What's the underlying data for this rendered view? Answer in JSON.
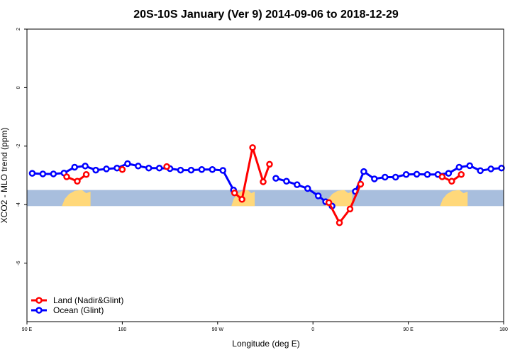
{
  "chart_data": {
    "type": "line",
    "title": "20S-10S January (Ver 9)   2014-09-06 to 2018-12-29",
    "xlabel": "Longitude (deg E)",
    "ylabel": "XCO2 - MLO trend (ppm)",
    "xlim": [
      90,
      540
    ],
    "ylim": [
      -8,
      2
    ],
    "x_ticks": [
      {
        "value": 90,
        "label": "90 E"
      },
      {
        "value": 180,
        "label": "180"
      },
      {
        "value": 270,
        "label": "90 W"
      },
      {
        "value": 360,
        "label": "0"
      },
      {
        "value": 450,
        "label": "90 E"
      },
      {
        "value": 540,
        "label": "180"
      }
    ],
    "y_ticks": [
      {
        "value": 2,
        "label": "2"
      },
      {
        "value": 0,
        "label": "0"
      },
      {
        "value": -2,
        "label": "-2"
      },
      {
        "value": -4,
        "label": "-4"
      },
      {
        "value": -6,
        "label": "-6"
      }
    ],
    "legend_position": "bottom-left",
    "land_band": {
      "y_top": -3.5,
      "y_bottom": -4.05,
      "ocean_color": "#a8bedd",
      "land_color": "#ffd87a"
    },
    "land_segments": [
      [
        123,
        150
      ],
      [
        283,
        305
      ],
      [
        372,
        397
      ],
      [
        480,
        506
      ]
    ],
    "series": [
      {
        "name": "Land (Nadir&Glint)",
        "color": "#ff0000",
        "points": [
          [
            127.5,
            -3.05
          ],
          [
            137.5,
            -3.2
          ],
          [
            146,
            -2.97
          ],
          [
            180,
            -2.8
          ],
          [
            222,
            -2.7
          ],
          [
            286,
            -3.6
          ],
          [
            293,
            -3.82
          ],
          [
            303,
            -2.05
          ],
          [
            313,
            -3.22
          ],
          [
            319,
            -2.62
          ],
          [
            375,
            -3.93
          ],
          [
            385,
            -4.62
          ],
          [
            395,
            -4.15
          ],
          [
            405,
            -3.3
          ],
          [
            482,
            -3.05
          ],
          [
            491,
            -3.2
          ],
          [
            500,
            -2.97
          ]
        ],
        "segments": [
          [
            0,
            2
          ],
          [
            3,
            3
          ],
          [
            4,
            4
          ],
          [
            5,
            9
          ],
          [
            10,
            13
          ],
          [
            14,
            16
          ]
        ]
      },
      {
        "name": "Ocean (Glint)",
        "color": "#0000ff",
        "points": [
          [
            95,
            -2.93
          ],
          [
            105,
            -2.95
          ],
          [
            115,
            -2.95
          ],
          [
            125,
            -2.92
          ],
          [
            135,
            -2.72
          ],
          [
            145,
            -2.68
          ],
          [
            155,
            -2.82
          ],
          [
            165,
            -2.78
          ],
          [
            175,
            -2.75
          ],
          [
            185,
            -2.6
          ],
          [
            195,
            -2.68
          ],
          [
            205,
            -2.75
          ],
          [
            215,
            -2.75
          ],
          [
            225,
            -2.77
          ],
          [
            235,
            -2.82
          ],
          [
            245,
            -2.82
          ],
          [
            255,
            -2.8
          ],
          [
            265,
            -2.8
          ],
          [
            275,
            -2.83
          ],
          [
            285,
            -3.5
          ],
          [
            325,
            -3.1
          ],
          [
            335,
            -3.2
          ],
          [
            345,
            -3.32
          ],
          [
            355,
            -3.45
          ],
          [
            365,
            -3.7
          ],
          [
            372,
            -3.9
          ],
          [
            378,
            -4.05
          ],
          [
            400,
            -3.55
          ],
          [
            408,
            -2.87
          ],
          [
            418,
            -3.12
          ],
          [
            428,
            -3.06
          ],
          [
            438,
            -3.06
          ],
          [
            448,
            -2.97
          ],
          [
            458,
            -2.96
          ],
          [
            468,
            -2.97
          ],
          [
            478,
            -2.97
          ],
          [
            488,
            -2.93
          ],
          [
            498,
            -2.72
          ],
          [
            508,
            -2.67
          ],
          [
            518,
            -2.84
          ],
          [
            528,
            -2.78
          ],
          [
            538,
            -2.75
          ]
        ],
        "segments": [
          [
            0,
            19
          ],
          [
            20,
            26
          ],
          [
            27,
            41
          ]
        ]
      }
    ]
  }
}
